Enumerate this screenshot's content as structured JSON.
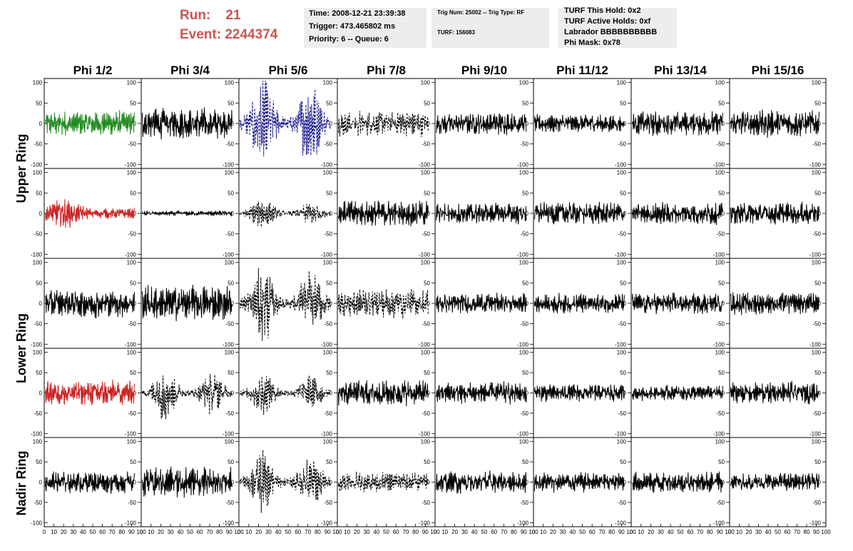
{
  "run_info": {
    "run_label": "Run:",
    "run_value": "21",
    "event_label": "Event:",
    "event_value": "2244374",
    "text_color": "#cc5555"
  },
  "time_box": {
    "time": "Time: 2008-12-21 23:39:38",
    "trigger": "Trigger: 473.465802 ms",
    "priority": "Priority: 6 -- Queue: 6"
  },
  "trig_box": {
    "trig": "Trig Num: 25002 -- Trig Type: RF",
    "turf": "TURF: 156083"
  },
  "turf_box": {
    "hold": "TURF This Hold: 0x2",
    "active": "TURF Active Holds: 0xf",
    "labrador": "Labrador BBBBBBBBBB",
    "phimask": "Phi Mask: 0x78"
  },
  "column_headers": [
    "Phi 1/2",
    "Phi 3/4",
    "Phi 5/6",
    "Phi 7/8",
    "Phi 9/10",
    "Phi 11/12",
    "Phi 13/14",
    "Phi 15/16"
  ],
  "row_labels": [
    "Upper Ring",
    "Lower Ring",
    "Nadir Ring"
  ],
  "y_ticks": [
    "100",
    "50",
    "0",
    "-50",
    "-100"
  ],
  "x_ticks": [
    "0",
    "10",
    "20",
    "30",
    "40",
    "50",
    "60",
    "70",
    "80",
    "90",
    "100"
  ],
  "colors": {
    "green": "#228b22",
    "red": "#cc2222",
    "blue": "#1a1a8c",
    "black": "#000000"
  },
  "chart_data": {
    "type": "line",
    "title": "",
    "xlabel": "",
    "ylabel": "",
    "xlim": [
      0,
      100
    ],
    "ylim": [
      -110,
      110
    ],
    "grid": false,
    "panels": [
      {
        "row": 0,
        "col": 0,
        "color": "green",
        "style": "solid",
        "amplitude": 25,
        "envelope": "uniform"
      },
      {
        "row": 0,
        "col": 1,
        "color": "black",
        "style": "solid",
        "amplitude": 30,
        "envelope": "uniform"
      },
      {
        "row": 0,
        "col": 2,
        "color": "blue",
        "style": "dashed",
        "amplitude": 90,
        "envelope": "double-burst"
      },
      {
        "row": 0,
        "col": 3,
        "color": "black",
        "style": "dashed",
        "amplitude": 25,
        "envelope": "uniform"
      },
      {
        "row": 0,
        "col": 4,
        "color": "black",
        "style": "solid",
        "amplitude": 22,
        "envelope": "uniform"
      },
      {
        "row": 0,
        "col": 5,
        "color": "black",
        "style": "solid",
        "amplitude": 18,
        "envelope": "uniform"
      },
      {
        "row": 0,
        "col": 6,
        "color": "black",
        "style": "solid",
        "amplitude": 24,
        "envelope": "uniform"
      },
      {
        "row": 0,
        "col": 7,
        "color": "black",
        "style": "solid",
        "amplitude": 28,
        "envelope": "uniform"
      },
      {
        "row": 1,
        "col": 0,
        "color": "red",
        "style": "solid",
        "amplitude": 30,
        "envelope": "early-burst"
      },
      {
        "row": 1,
        "col": 1,
        "color": "black",
        "style": "solid",
        "amplitude": 5,
        "envelope": "uniform"
      },
      {
        "row": 1,
        "col": 2,
        "color": "black",
        "style": "dashed",
        "amplitude": 30,
        "envelope": "double-burst"
      },
      {
        "row": 1,
        "col": 3,
        "color": "black",
        "style": "solid",
        "amplitude": 25,
        "envelope": "uniform"
      },
      {
        "row": 1,
        "col": 4,
        "color": "black",
        "style": "solid",
        "amplitude": 22,
        "envelope": "uniform"
      },
      {
        "row": 1,
        "col": 5,
        "color": "black",
        "style": "solid",
        "amplitude": 22,
        "envelope": "uniform"
      },
      {
        "row": 1,
        "col": 6,
        "color": "black",
        "style": "solid",
        "amplitude": 22,
        "envelope": "uniform"
      },
      {
        "row": 1,
        "col": 7,
        "color": "black",
        "style": "solid",
        "amplitude": 22,
        "envelope": "uniform"
      },
      {
        "row": 2,
        "col": 0,
        "color": "black",
        "style": "solid",
        "amplitude": 28,
        "envelope": "uniform"
      },
      {
        "row": 2,
        "col": 1,
        "color": "black",
        "style": "solid",
        "amplitude": 35,
        "envelope": "uniform"
      },
      {
        "row": 2,
        "col": 2,
        "color": "black",
        "style": "dashed",
        "amplitude": 75,
        "envelope": "double-burst"
      },
      {
        "row": 2,
        "col": 3,
        "color": "black",
        "style": "dashed",
        "amplitude": 30,
        "envelope": "uniform"
      },
      {
        "row": 2,
        "col": 4,
        "color": "black",
        "style": "solid",
        "amplitude": 20,
        "envelope": "uniform"
      },
      {
        "row": 2,
        "col": 5,
        "color": "black",
        "style": "solid",
        "amplitude": 20,
        "envelope": "uniform"
      },
      {
        "row": 2,
        "col": 6,
        "color": "black",
        "style": "solid",
        "amplitude": 20,
        "envelope": "uniform"
      },
      {
        "row": 2,
        "col": 7,
        "color": "black",
        "style": "solid",
        "amplitude": 22,
        "envelope": "uniform"
      },
      {
        "row": 3,
        "col": 0,
        "color": "red",
        "style": "solid",
        "amplitude": 25,
        "envelope": "uniform"
      },
      {
        "row": 3,
        "col": 1,
        "color": "black",
        "style": "dashed",
        "amplitude": 50,
        "envelope": "double-burst"
      },
      {
        "row": 3,
        "col": 2,
        "color": "black",
        "style": "dashed",
        "amplitude": 40,
        "envelope": "double-burst"
      },
      {
        "row": 3,
        "col": 3,
        "color": "black",
        "style": "solid",
        "amplitude": 25,
        "envelope": "uniform"
      },
      {
        "row": 3,
        "col": 4,
        "color": "black",
        "style": "solid",
        "amplitude": 22,
        "envelope": "uniform"
      },
      {
        "row": 3,
        "col": 5,
        "color": "black",
        "style": "solid",
        "amplitude": 18,
        "envelope": "uniform"
      },
      {
        "row": 3,
        "col": 6,
        "color": "black",
        "style": "solid",
        "amplitude": 15,
        "envelope": "uniform"
      },
      {
        "row": 3,
        "col": 7,
        "color": "black",
        "style": "solid",
        "amplitude": 22,
        "envelope": "uniform"
      },
      {
        "row": 4,
        "col": 0,
        "color": "black",
        "style": "solid",
        "amplitude": 22,
        "envelope": "uniform"
      },
      {
        "row": 4,
        "col": 1,
        "color": "black",
        "style": "solid",
        "amplitude": 30,
        "envelope": "uniform"
      },
      {
        "row": 4,
        "col": 2,
        "color": "black",
        "style": "dashed",
        "amplitude": 60,
        "envelope": "double-burst"
      },
      {
        "row": 4,
        "col": 3,
        "color": "black",
        "style": "dashed",
        "amplitude": 20,
        "envelope": "uniform"
      },
      {
        "row": 4,
        "col": 4,
        "color": "black",
        "style": "solid",
        "amplitude": 22,
        "envelope": "uniform"
      },
      {
        "row": 4,
        "col": 5,
        "color": "black",
        "style": "solid",
        "amplitude": 20,
        "envelope": "uniform"
      },
      {
        "row": 4,
        "col": 6,
        "color": "black",
        "style": "solid",
        "amplitude": 22,
        "envelope": "uniform"
      },
      {
        "row": 4,
        "col": 7,
        "color": "black",
        "style": "solid",
        "amplitude": 18,
        "envelope": "uniform"
      }
    ]
  }
}
